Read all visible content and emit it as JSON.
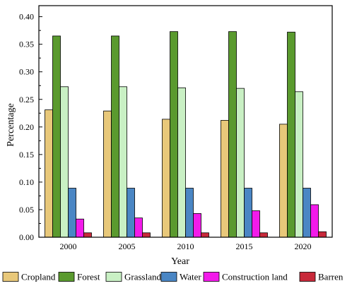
{
  "chart_data": {
    "type": "bar",
    "xlabel": "Year",
    "ylabel": "Percentage",
    "ylim": [
      0,
      0.42
    ],
    "yticks": [
      "0.00",
      "0.05",
      "0.10",
      "0.15",
      "0.20",
      "0.25",
      "0.30",
      "0.35",
      "0.40"
    ],
    "categories": [
      "2000",
      "2005",
      "2010",
      "2015",
      "2020"
    ],
    "grid": false,
    "legend_position": "bottom",
    "series": [
      {
        "name": "Cropland",
        "color": "#E8C87A",
        "values": [
          0.231,
          0.229,
          0.214,
          0.212,
          0.205
        ]
      },
      {
        "name": "Forest",
        "color": "#5A9A2E",
        "values": [
          0.365,
          0.365,
          0.373,
          0.373,
          0.372
        ]
      },
      {
        "name": "Grassland",
        "color": "#C9F0C4",
        "values": [
          0.273,
          0.273,
          0.271,
          0.27,
          0.264
        ]
      },
      {
        "name": "Water",
        "color": "#4A86C4",
        "values": [
          0.089,
          0.089,
          0.089,
          0.089,
          0.089
        ]
      },
      {
        "name": "Construction land",
        "color": "#F21BEA",
        "values": [
          0.033,
          0.035,
          0.043,
          0.048,
          0.059
        ]
      },
      {
        "name": "Barren",
        "color": "#C8293A",
        "values": [
          0.008,
          0.008,
          0.008,
          0.008,
          0.01
        ]
      }
    ]
  }
}
